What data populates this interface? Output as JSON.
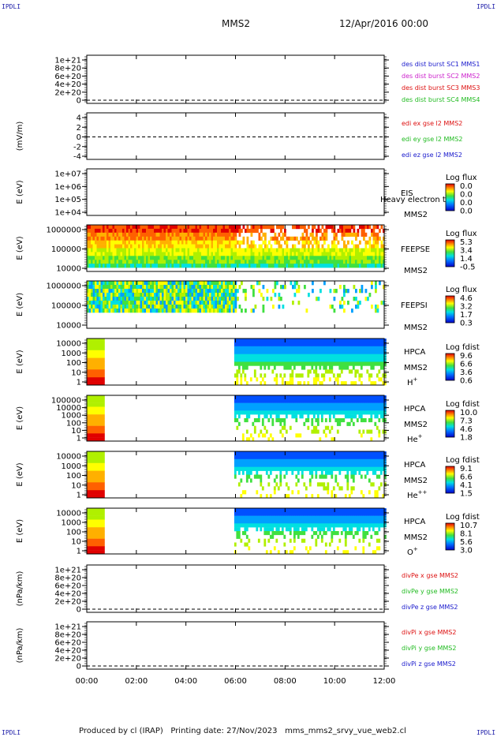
{
  "header": {
    "corner_label": "IPDLI",
    "title": "MMS2",
    "date": "12/Apr/2016 00:00"
  },
  "footer": {
    "produced_by": "Produced by cl (IRAP)",
    "printing_date": "Printing date: 27/Nov/2023",
    "file": "mms_mms2_srvy_vue_web2.cl"
  },
  "colors": {
    "blue": "#1a1acc",
    "magenta": "#cc22cc",
    "red": "#dd1111",
    "green": "#22bb22"
  },
  "chart_data": {
    "type": "multi-panel",
    "x_ticks": [
      "00:00",
      "02:00",
      "04:00",
      "06:00",
      "08:00",
      "10:00",
      "12:00"
    ],
    "x_range_hours": [
      0,
      12
    ],
    "panels": [
      {
        "id": "des",
        "type": "line",
        "y_ticks": [
          "1e+21",
          "8e+20",
          "6e+20",
          "4e+20",
          "2e+20",
          "0"
        ],
        "ylabel": "",
        "zero_line": true,
        "legend": [
          {
            "label": "des dist burst SC1 MMS1",
            "color": "#1a1acc"
          },
          {
            "label": "des dist burst SC2 MMS2",
            "color": "#cc22cc"
          },
          {
            "label": "des dist burst SC3 MMS3",
            "color": "#dd1111"
          },
          {
            "label": "des dist burst SC4 MMS4",
            "color": "#22bb22"
          }
        ]
      },
      {
        "id": "edi",
        "type": "line",
        "y_ticks": [
          "4",
          "2",
          "0",
          "-2",
          "-4"
        ],
        "ylabel": "(mV/m)",
        "zero_line": true,
        "legend": [
          {
            "label": "edi ex gse l2 MMS2",
            "color": "#dd1111"
          },
          {
            "label": "edi ey gse l2 MMS2",
            "color": "#22bb22"
          },
          {
            "label": "edi ez gse l2 MMS2",
            "color": "#1a1acc"
          }
        ]
      },
      {
        "id": "eis",
        "type": "heatmap",
        "y_ticks": [
          "1e+07",
          "1e+06",
          "1e+05",
          "1e+04"
        ],
        "ylabel": "E (eV)",
        "instrument": "EIS",
        "subtitle": "Heavy electron to",
        "spacecraft": "MMS2",
        "cb_title": "Log flux",
        "cb_ticks": [
          "0.0",
          "0.0",
          "0.0",
          "0.0"
        ],
        "data_segments": []
      },
      {
        "id": "feepse",
        "type": "heatmap",
        "y_ticks": [
          "1000000",
          "100000",
          "10000"
        ],
        "ylabel": "E (eV)",
        "instrument": "FEEPSE",
        "spacecraft": "MMS2",
        "cb_title": "Log flux",
        "cb_ticks": [
          "5.3",
          "3.4",
          "1.4",
          "-0.5"
        ],
        "data_segments": [
          [
            0,
            12
          ]
        ]
      },
      {
        "id": "feepsi",
        "type": "heatmap",
        "y_ticks": [
          "1000000",
          "100000",
          "10000"
        ],
        "ylabel": "E (eV)",
        "instrument": "FEEPSI",
        "spacecraft": "MMS2",
        "cb_title": "Log flux",
        "cb_ticks": [
          "4.6",
          "3.2",
          "1.7",
          "0.3"
        ],
        "data_segments": [
          [
            0,
            12
          ]
        ]
      },
      {
        "id": "hpca_h",
        "type": "heatmap",
        "y_ticks": [
          "10000",
          "1000",
          "100",
          "10",
          "1"
        ],
        "ylabel": "E (eV)",
        "instrument": "HPCA",
        "spacecraft": "MMS2",
        "species": "H",
        "species_sup": "+",
        "cb_title": "Log fdist",
        "cb_ticks": [
          "9.6",
          "6.6",
          "3.6",
          "0.6"
        ],
        "data_segments": [
          [
            0,
            0.7
          ],
          [
            5.95,
            12
          ]
        ]
      },
      {
        "id": "hpca_he",
        "type": "heatmap",
        "y_ticks": [
          "100000",
          "10000",
          "1000",
          "100",
          "10",
          "1"
        ],
        "ylabel": "E (eV)",
        "instrument": "HPCA",
        "spacecraft": "MMS2",
        "species": "He",
        "species_sup": "+",
        "cb_title": "Log fdist",
        "cb_ticks": [
          "10.0",
          "7.3",
          "4.6",
          "1.8"
        ],
        "data_segments": [
          [
            0,
            0.7
          ],
          [
            5.95,
            12
          ]
        ]
      },
      {
        "id": "hpca_hepp",
        "type": "heatmap",
        "y_ticks": [
          "10000",
          "1000",
          "100",
          "10",
          "1"
        ],
        "ylabel": "E (eV)",
        "instrument": "HPCA",
        "spacecraft": "MMS2",
        "species": "He",
        "species_sup": "++",
        "cb_title": "Log fdist",
        "cb_ticks": [
          "9.1",
          "6.6",
          "4.1",
          "1.5"
        ],
        "data_segments": [
          [
            0,
            0.7
          ],
          [
            5.95,
            12
          ]
        ]
      },
      {
        "id": "hpca_o",
        "type": "heatmap",
        "y_ticks": [
          "10000",
          "1000",
          "100",
          "10",
          "1"
        ],
        "ylabel": "E (eV)",
        "instrument": "HPCA",
        "spacecraft": "MMS2",
        "species": "O",
        "species_sup": "+",
        "cb_title": "Log fdist",
        "cb_ticks": [
          "10.7",
          "8.1",
          "5.6",
          "3.0"
        ],
        "data_segments": [
          [
            0,
            0.7
          ],
          [
            5.95,
            12
          ]
        ]
      },
      {
        "id": "divpe",
        "type": "line",
        "y_ticks": [
          "1e+21",
          "8e+20",
          "6e+20",
          "4e+20",
          "2e+20",
          "0"
        ],
        "ylabel": "(nPa/km)",
        "zero_line": true,
        "legend": [
          {
            "label": "divPe x gse MMS2",
            "color": "#dd1111"
          },
          {
            "label": "divPe y gse MMS2",
            "color": "#22bb22"
          },
          {
            "label": "divPe z gse MMS2",
            "color": "#1a1acc"
          }
        ]
      },
      {
        "id": "divpi",
        "type": "line",
        "y_ticks": [
          "1e+21",
          "8e+20",
          "6e+20",
          "4e+20",
          "2e+20",
          "0"
        ],
        "ylabel": "(nPa/km)",
        "zero_line": true,
        "legend": [
          {
            "label": "divPi x gse MMS2",
            "color": "#dd1111"
          },
          {
            "label": "divPi y gse MMS2",
            "color": "#22bb22"
          },
          {
            "label": "divPi z gse MMS2",
            "color": "#1a1acc"
          }
        ]
      }
    ]
  }
}
